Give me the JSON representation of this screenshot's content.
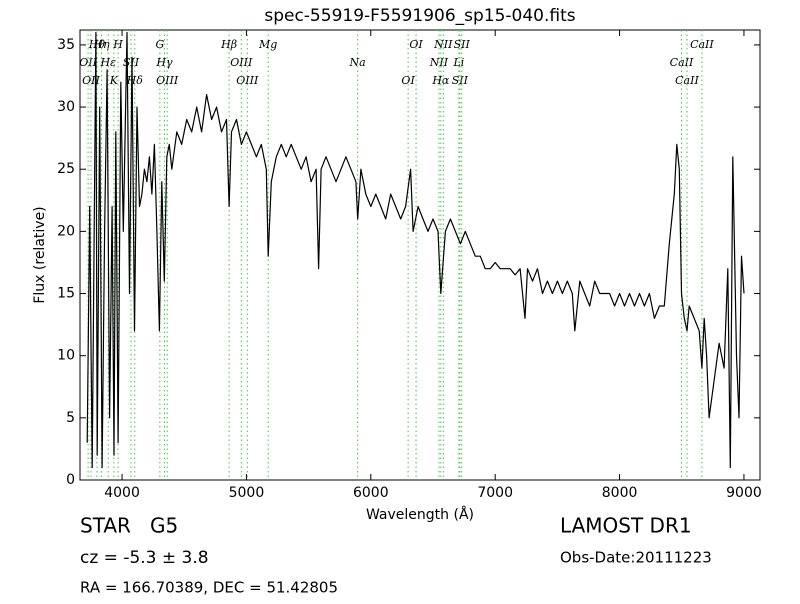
{
  "chart_data": {
    "type": "line",
    "title": "spec-55919-F5591906_sp15-040.fits",
    "x_label": "Wavelength (Å)",
    "y_label": "Flux (relative)",
    "xlim": [
      3662,
      9129
    ],
    "ylim": [
      0,
      36.2
    ],
    "xticks": [
      4000,
      5000,
      6000,
      7000,
      8000,
      9000
    ],
    "yticks": [
      0,
      5,
      10,
      15,
      20,
      25,
      30,
      35
    ],
    "grid": false,
    "x": [
      3720,
      3740,
      3760,
      3780,
      3790,
      3800,
      3820,
      3840,
      3860,
      3880,
      3900,
      3920,
      3935,
      3950,
      3968,
      3990,
      4010,
      4040,
      4060,
      4080,
      4100,
      4120,
      4140,
      4160,
      4180,
      4200,
      4220,
      4240,
      4260,
      4280,
      4300,
      4320,
      4340,
      4360,
      4380,
      4400,
      4440,
      4480,
      4520,
      4560,
      4600,
      4640,
      4680,
      4720,
      4760,
      4800,
      4840,
      4861,
      4880,
      4920,
      4960,
      5000,
      5040,
      5080,
      5120,
      5160,
      5175,
      5200,
      5240,
      5280,
      5320,
      5360,
      5400,
      5440,
      5480,
      5520,
      5560,
      5580,
      5600,
      5640,
      5680,
      5720,
      5760,
      5800,
      5840,
      5880,
      5895,
      5920,
      5960,
      6000,
      6040,
      6080,
      6120,
      6160,
      6200,
      6240,
      6280,
      6320,
      6340,
      6380,
      6420,
      6460,
      6500,
      6540,
      6563,
      6600,
      6640,
      6680,
      6720,
      6760,
      6800,
      6840,
      6880,
      6920,
      6960,
      7000,
      7040,
      7080,
      7120,
      7160,
      7200,
      7240,
      7260,
      7300,
      7340,
      7380,
      7420,
      7460,
      7500,
      7540,
      7580,
      7620,
      7640,
      7680,
      7720,
      7760,
      7800,
      7840,
      7880,
      7920,
      7960,
      8000,
      8040,
      8080,
      8120,
      8160,
      8200,
      8240,
      8280,
      8320,
      8360,
      8400,
      8440,
      8460,
      8480,
      8498,
      8520,
      8542,
      8560,
      8600,
      8640,
      8662,
      8680,
      8700,
      8720,
      8760,
      8800,
      8840,
      8870,
      8890,
      8910,
      8940,
      8960,
      8980,
      9000
    ],
    "series": [
      {
        "color": "#000000",
        "values": [
          3,
          22,
          1,
          25,
          36,
          2,
          30,
          1,
          20,
          33,
          5,
          22,
          2,
          28,
          3,
          32,
          20,
          36,
          15,
          34,
          12,
          30,
          22,
          23,
          25,
          24,
          26,
          23,
          27,
          20,
          12,
          24,
          16,
          26,
          27,
          25,
          28,
          27,
          29,
          28,
          30,
          28,
          31,
          29,
          30,
          28,
          29,
          22,
          28,
          29,
          27,
          28,
          27,
          26,
          27,
          25,
          18,
          24,
          26,
          27,
          26,
          27,
          26,
          25,
          26,
          24,
          25,
          17,
          25,
          26,
          25,
          24,
          25,
          26,
          25,
          24,
          21,
          25,
          23,
          22,
          23,
          22,
          21,
          23,
          22,
          21,
          22,
          25,
          20,
          22,
          21,
          20,
          21,
          20,
          15,
          20,
          21,
          20,
          19,
          20,
          19,
          18,
          18,
          17,
          17,
          17.5,
          17,
          17,
          17,
          16.5,
          17,
          13,
          17,
          16,
          17,
          15,
          16,
          15,
          16,
          15,
          16,
          15,
          12,
          16,
          15,
          14,
          16,
          15,
          15,
          15,
          14,
          15,
          14,
          15,
          14,
          15,
          14,
          15,
          13,
          14,
          14,
          19,
          23,
          27,
          25,
          15,
          13,
          12,
          14,
          13,
          12,
          9,
          13,
          10,
          5,
          8,
          11,
          9,
          17,
          1,
          26,
          10,
          5,
          18,
          15
        ]
      }
    ],
    "line_color": "#55bb55",
    "lines": [
      {
        "x": 3798,
        "label": "Hθ"
      },
      {
        "x": 3727,
        "label": "OII"
      },
      {
        "x": 3750,
        "label": "OII"
      },
      {
        "x": 3835,
        "label": "Hη"
      },
      {
        "x": 3889,
        "label": "Hε"
      },
      {
        "x": 3934,
        "label": "K"
      },
      {
        "x": 3968,
        "label": "H"
      },
      {
        "x": 4072,
        "label": "SII"
      },
      {
        "x": 4102,
        "label": "Hδ"
      },
      {
        "x": 4304,
        "label": "G"
      },
      {
        "x": 4341,
        "label": "Hγ"
      },
      {
        "x": 4363,
        "label": "OIII"
      },
      {
        "x": 4861,
        "label": "Hβ"
      },
      {
        "x": 4959,
        "label": "OIII"
      },
      {
        "x": 5007,
        "label": "OIII"
      },
      {
        "x": 5175,
        "label": "Mg"
      },
      {
        "x": 5894,
        "label": "Na"
      },
      {
        "x": 6300,
        "label": "OI"
      },
      {
        "x": 6364,
        "label": "OI"
      },
      {
        "x": 6548,
        "label": "NII"
      },
      {
        "x": 6563,
        "label": "Hα"
      },
      {
        "x": 6583,
        "label": "NII"
      },
      {
        "x": 6708,
        "label": "Li"
      },
      {
        "x": 6716,
        "label": "SII"
      },
      {
        "x": 6731,
        "label": "SII"
      },
      {
        "x": 8498,
        "label": "CaII"
      },
      {
        "x": 8542,
        "label": "CaII"
      },
      {
        "x": 8662,
        "label": "CaII"
      }
    ]
  },
  "info": {
    "class": "STAR",
    "subclass": "G5",
    "cz": "cz = -5.3  ± 3.8",
    "coords": "RA = 166.70389, DEC = 51.42805",
    "survey": "LAMOST DR1",
    "obs_date": "Obs-Date:20111223"
  }
}
